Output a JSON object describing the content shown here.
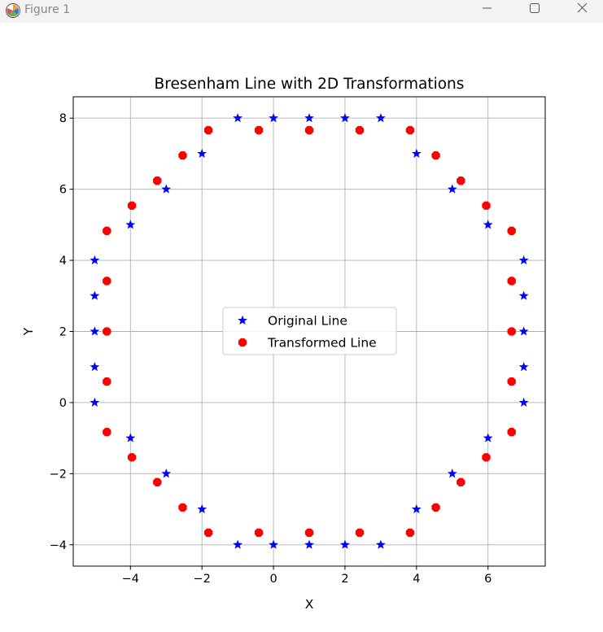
{
  "window": {
    "title": "Figure 1",
    "icons": [
      "matplotlib-icon",
      "minimize-icon",
      "maximize-icon",
      "close-icon"
    ]
  },
  "chart_data": {
    "type": "scatter",
    "title": "Bresenham Line with 2D Transformations",
    "xlabel": "X",
    "ylabel": "Y",
    "xlim": [
      -5.6,
      7.6
    ],
    "ylim": [
      -4.6,
      8.6
    ],
    "xticks": [
      -4,
      -2,
      0,
      2,
      4,
      6
    ],
    "yticks": [
      -4,
      -2,
      0,
      2,
      4,
      6,
      8
    ],
    "xtick_labels": [
      "−4",
      "−2",
      "0",
      "2",
      "4",
      "6"
    ],
    "ytick_labels": [
      "−4",
      "−2",
      "0",
      "2",
      "4",
      "6",
      "8"
    ],
    "grid": true,
    "legend_position": "center",
    "series": [
      {
        "name": "Original Line",
        "marker": "star",
        "color": "#0000ff",
        "points": [
          [
            -1,
            8
          ],
          [
            0,
            8
          ],
          [
            1,
            8
          ],
          [
            2,
            8
          ],
          [
            3,
            8
          ],
          [
            -2,
            7
          ],
          [
            4,
            7
          ],
          [
            -3,
            6
          ],
          [
            5,
            6
          ],
          [
            -4,
            5
          ],
          [
            6,
            5
          ],
          [
            -5,
            4
          ],
          [
            7,
            4
          ],
          [
            -5,
            3
          ],
          [
            7,
            3
          ],
          [
            -5,
            2
          ],
          [
            7,
            2
          ],
          [
            -5,
            1
          ],
          [
            7,
            1
          ],
          [
            -5,
            0
          ],
          [
            7,
            0
          ],
          [
            -4,
            -1
          ],
          [
            6,
            -1
          ],
          [
            -3,
            -2
          ],
          [
            5,
            -2
          ],
          [
            -2,
            -3
          ],
          [
            4,
            -3
          ],
          [
            -1,
            -4
          ],
          [
            0,
            -4
          ],
          [
            1,
            -4
          ],
          [
            2,
            -4
          ],
          [
            3,
            -4
          ]
        ]
      },
      {
        "name": "Transformed Line",
        "marker": "octagon",
        "color": "#ff0000",
        "points": [
          [
            -1.82,
            7.66
          ],
          [
            -0.41,
            7.66
          ],
          [
            1.0,
            7.66
          ],
          [
            2.41,
            7.66
          ],
          [
            3.82,
            7.66
          ],
          [
            -2.54,
            6.95
          ],
          [
            4.54,
            6.95
          ],
          [
            -3.25,
            6.24
          ],
          [
            5.24,
            6.24
          ],
          [
            -3.96,
            5.54
          ],
          [
            5.95,
            5.54
          ],
          [
            -4.66,
            4.83
          ],
          [
            6.66,
            4.83
          ],
          [
            -4.66,
            3.42
          ],
          [
            6.66,
            3.42
          ],
          [
            -4.66,
            2.0
          ],
          [
            6.66,
            2.0
          ],
          [
            -4.66,
            0.59
          ],
          [
            6.66,
            0.59
          ],
          [
            -4.66,
            -0.83
          ],
          [
            6.66,
            -0.83
          ],
          [
            -3.96,
            -1.54
          ],
          [
            5.95,
            -1.54
          ],
          [
            -3.25,
            -2.24
          ],
          [
            5.24,
            -2.24
          ],
          [
            -2.54,
            -2.95
          ],
          [
            4.54,
            -2.95
          ],
          [
            -1.82,
            -3.66
          ],
          [
            -0.41,
            -3.66
          ],
          [
            1.0,
            -3.66
          ],
          [
            2.41,
            -3.66
          ],
          [
            3.82,
            -3.66
          ]
        ]
      }
    ]
  }
}
